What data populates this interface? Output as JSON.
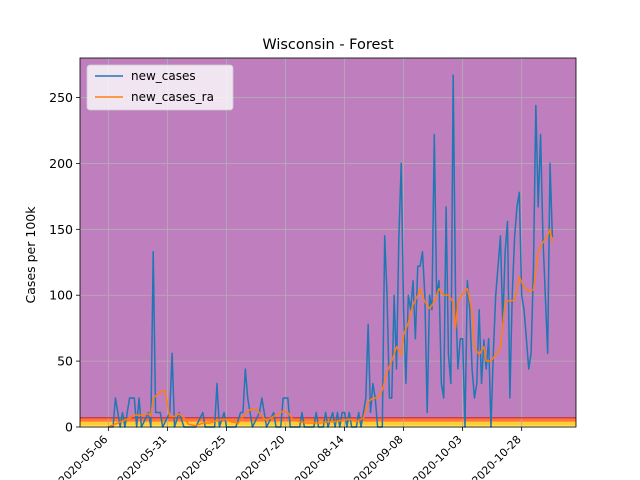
{
  "chart_data": {
    "type": "line",
    "title": "Wisconsin - Forest",
    "xlabel": "",
    "ylabel": "Cases per 100k",
    "x_tick_labels": [
      "2020-05-06",
      "2020-05-31",
      "2020-06-25",
      "2020-07-20",
      "2020-08-14",
      "2020-09-08",
      "2020-10-03",
      "2020-10-28"
    ],
    "x_tick_values": [
      "2020-05-06",
      "2020-05-31",
      "2020-06-25",
      "2020-07-20",
      "2020-08-14",
      "2020-09-08",
      "2020-10-03",
      "2020-10-28"
    ],
    "xlim": [
      "2020-04-24",
      "2020-11-20"
    ],
    "y_ticks": [
      0,
      50,
      100,
      150,
      200,
      250
    ],
    "ylim": [
      0,
      280
    ],
    "grid": true,
    "legend_position": "top-left",
    "background_bands": [
      {
        "from": 0,
        "to": 1,
        "color": "#ffff66"
      },
      {
        "from": 1,
        "to": 4,
        "color": "#ffcc33"
      },
      {
        "from": 4,
        "to": 7,
        "color": "#ff7733"
      },
      {
        "from": 7,
        "to": 280,
        "color": "#bf7fbf"
      }
    ],
    "reference_line": {
      "value": 7,
      "color": "#cc3344"
    },
    "series": [
      {
        "name": "new_cases",
        "color": "#1f77b4",
        "points": [
          [
            "2020-05-06",
            0
          ],
          [
            "2020-05-08",
            0
          ],
          [
            "2020-05-09",
            22
          ],
          [
            "2020-05-11",
            0
          ],
          [
            "2020-05-12",
            11
          ],
          [
            "2020-05-13",
            0
          ],
          [
            "2020-05-15",
            22
          ],
          [
            "2020-05-17",
            22
          ],
          [
            "2020-05-18",
            0
          ],
          [
            "2020-05-19",
            22
          ],
          [
            "2020-05-20",
            0
          ],
          [
            "2020-05-23",
            11
          ],
          [
            "2020-05-24",
            0
          ],
          [
            "2020-05-25",
            133
          ],
          [
            "2020-05-26",
            11
          ],
          [
            "2020-05-28",
            11
          ],
          [
            "2020-05-29",
            0
          ],
          [
            "2020-06-01",
            11
          ],
          [
            "2020-06-02",
            56
          ],
          [
            "2020-06-03",
            0
          ],
          [
            "2020-06-05",
            11
          ],
          [
            "2020-06-07",
            0
          ],
          [
            "2020-06-12",
            0
          ],
          [
            "2020-06-15",
            11
          ],
          [
            "2020-06-16",
            0
          ],
          [
            "2020-06-20",
            0
          ],
          [
            "2020-06-21",
            33
          ],
          [
            "2020-06-22",
            0
          ],
          [
            "2020-06-24",
            11
          ],
          [
            "2020-06-25",
            0
          ],
          [
            "2020-06-29",
            0
          ],
          [
            "2020-07-01",
            11
          ],
          [
            "2020-07-02",
            11
          ],
          [
            "2020-07-03",
            44
          ],
          [
            "2020-07-04",
            22
          ],
          [
            "2020-07-06",
            0
          ],
          [
            "2020-07-09",
            11
          ],
          [
            "2020-07-10",
            22
          ],
          [
            "2020-07-11",
            11
          ],
          [
            "2020-07-12",
            0
          ],
          [
            "2020-07-15",
            11
          ],
          [
            "2020-07-16",
            0
          ],
          [
            "2020-07-18",
            0
          ],
          [
            "2020-07-19",
            22
          ],
          [
            "2020-07-21",
            22
          ],
          [
            "2020-07-22",
            0
          ],
          [
            "2020-07-26",
            0
          ],
          [
            "2020-07-27",
            11
          ],
          [
            "2020-07-28",
            0
          ],
          [
            "2020-08-01",
            0
          ],
          [
            "2020-08-02",
            11
          ],
          [
            "2020-08-03",
            0
          ],
          [
            "2020-08-05",
            0
          ],
          [
            "2020-08-06",
            11
          ],
          [
            "2020-08-07",
            0
          ],
          [
            "2020-08-09",
            11
          ],
          [
            "2020-08-10",
            0
          ],
          [
            "2020-08-11",
            11
          ],
          [
            "2020-08-12",
            0
          ],
          [
            "2020-08-13",
            11
          ],
          [
            "2020-08-14",
            11
          ],
          [
            "2020-08-15",
            0
          ],
          [
            "2020-08-16",
            11
          ],
          [
            "2020-08-17",
            0
          ],
          [
            "2020-08-19",
            0
          ],
          [
            "2020-08-20",
            11
          ],
          [
            "2020-08-21",
            0
          ],
          [
            "2020-08-22",
            11
          ],
          [
            "2020-08-23",
            22
          ],
          [
            "2020-08-24",
            78
          ],
          [
            "2020-08-25",
            11
          ],
          [
            "2020-08-26",
            33
          ],
          [
            "2020-08-27",
            22
          ],
          [
            "2020-08-28",
            0
          ],
          [
            "2020-08-29",
            0
          ],
          [
            "2020-08-30",
            0
          ],
          [
            "2020-08-31",
            145
          ],
          [
            "2020-09-01",
            100
          ],
          [
            "2020-09-02",
            22
          ],
          [
            "2020-09-03",
            22
          ],
          [
            "2020-09-04",
            100
          ],
          [
            "2020-09-05",
            44
          ],
          [
            "2020-09-06",
            144
          ],
          [
            "2020-09-07",
            200
          ],
          [
            "2020-09-08",
            89
          ],
          [
            "2020-09-09",
            33
          ],
          [
            "2020-09-10",
            100
          ],
          [
            "2020-09-11",
            89
          ],
          [
            "2020-09-12",
            111
          ],
          [
            "2020-09-13",
            67
          ],
          [
            "2020-09-14",
            122
          ],
          [
            "2020-09-15",
            122
          ],
          [
            "2020-09-16",
            133
          ],
          [
            "2020-09-17",
            100
          ],
          [
            "2020-09-18",
            11
          ],
          [
            "2020-09-19",
            100
          ],
          [
            "2020-09-20",
            89
          ],
          [
            "2020-09-21",
            222
          ],
          [
            "2020-09-22",
            100
          ],
          [
            "2020-09-23",
            111
          ],
          [
            "2020-09-24",
            33
          ],
          [
            "2020-09-25",
            22
          ],
          [
            "2020-09-26",
            167
          ],
          [
            "2020-09-27",
            55
          ],
          [
            "2020-09-28",
            33
          ],
          [
            "2020-09-29",
            267
          ],
          [
            "2020-09-30",
            100
          ],
          [
            "2020-10-01",
            44
          ],
          [
            "2020-10-02",
            67
          ],
          [
            "2020-10-03",
            67
          ],
          [
            "2020-10-04",
            0
          ],
          [
            "2020-10-05",
            111
          ],
          [
            "2020-10-06",
            89
          ],
          [
            "2020-10-07",
            44
          ],
          [
            "2020-10-08",
            22
          ],
          [
            "2020-10-09",
            33
          ],
          [
            "2020-10-10",
            89
          ],
          [
            "2020-10-11",
            33
          ],
          [
            "2020-10-12",
            66
          ],
          [
            "2020-10-13",
            44
          ],
          [
            "2020-10-14",
            67
          ],
          [
            "2020-10-15",
            0
          ],
          [
            "2020-10-16",
            56
          ],
          [
            "2020-10-17",
            100
          ],
          [
            "2020-10-18",
            122
          ],
          [
            "2020-10-19",
            145
          ],
          [
            "2020-10-20",
            78
          ],
          [
            "2020-10-21",
            133
          ],
          [
            "2020-10-22",
            156
          ],
          [
            "2020-10-23",
            22
          ],
          [
            "2020-10-24",
            100
          ],
          [
            "2020-10-25",
            144
          ],
          [
            "2020-10-26",
            167
          ],
          [
            "2020-10-27",
            178
          ],
          [
            "2020-10-28",
            100
          ],
          [
            "2020-10-29",
            89
          ],
          [
            "2020-10-30",
            67
          ],
          [
            "2020-10-31",
            44
          ],
          [
            "2020-11-01",
            56
          ],
          [
            "2020-11-02",
            122
          ],
          [
            "2020-11-03",
            244
          ],
          [
            "2020-11-04",
            167
          ],
          [
            "2020-11-05",
            222
          ],
          [
            "2020-11-06",
            144
          ],
          [
            "2020-11-07",
            100
          ],
          [
            "2020-11-08",
            56
          ],
          [
            "2020-11-09",
            200
          ],
          [
            "2020-11-10",
            144
          ]
        ]
      },
      {
        "name": "new_cases_ra",
        "color": "#ff7f0e",
        "points": [
          [
            "2020-05-06",
            0
          ],
          [
            "2020-05-10",
            3
          ],
          [
            "2020-05-14",
            6
          ],
          [
            "2020-05-17",
            9
          ],
          [
            "2020-05-20",
            9
          ],
          [
            "2020-05-23",
            10
          ],
          [
            "2020-05-24",
            8
          ],
          [
            "2020-05-25",
            22
          ],
          [
            "2020-05-27",
            25
          ],
          [
            "2020-05-29",
            28
          ],
          [
            "2020-05-30",
            27
          ],
          [
            "2020-06-01",
            8
          ],
          [
            "2020-06-03",
            8
          ],
          [
            "2020-06-05",
            10
          ],
          [
            "2020-06-07",
            7
          ],
          [
            "2020-06-09",
            2
          ],
          [
            "2020-06-12",
            1
          ],
          [
            "2020-06-15",
            3
          ],
          [
            "2020-06-18",
            3
          ],
          [
            "2020-06-21",
            5
          ],
          [
            "2020-06-24",
            6
          ],
          [
            "2020-06-27",
            4
          ],
          [
            "2020-06-30",
            3
          ],
          [
            "2020-07-02",
            8
          ],
          [
            "2020-07-04",
            12
          ],
          [
            "2020-07-06",
            14
          ],
          [
            "2020-07-08",
            13
          ],
          [
            "2020-07-10",
            8
          ],
          [
            "2020-07-12",
            5
          ],
          [
            "2020-07-15",
            8
          ],
          [
            "2020-07-17",
            10
          ],
          [
            "2020-07-19",
            12
          ],
          [
            "2020-07-21",
            11
          ],
          [
            "2020-07-23",
            6
          ],
          [
            "2020-07-26",
            4
          ],
          [
            "2020-07-29",
            3
          ],
          [
            "2020-08-01",
            3
          ],
          [
            "2020-08-04",
            3
          ],
          [
            "2020-08-07",
            4
          ],
          [
            "2020-08-10",
            4
          ],
          [
            "2020-08-13",
            5
          ],
          [
            "2020-08-16",
            6
          ],
          [
            "2020-08-19",
            4
          ],
          [
            "2020-08-22",
            7
          ],
          [
            "2020-08-24",
            19
          ],
          [
            "2020-08-26",
            22
          ],
          [
            "2020-08-28",
            22
          ],
          [
            "2020-08-30",
            28
          ],
          [
            "2020-09-01",
            42
          ],
          [
            "2020-09-03",
            50
          ],
          [
            "2020-09-05",
            61
          ],
          [
            "2020-09-07",
            55
          ],
          [
            "2020-09-08",
            70
          ],
          [
            "2020-09-10",
            79
          ],
          [
            "2020-09-12",
            93
          ],
          [
            "2020-09-14",
            100
          ],
          [
            "2020-09-15",
            105
          ],
          [
            "2020-09-17",
            95
          ],
          [
            "2020-09-19",
            90
          ],
          [
            "2020-09-21",
            95
          ],
          [
            "2020-09-23",
            105
          ],
          [
            "2020-09-25",
            100
          ],
          [
            "2020-09-27",
            100
          ],
          [
            "2020-09-29",
            95
          ],
          [
            "2020-09-30",
            75
          ],
          [
            "2020-10-01",
            95
          ],
          [
            "2020-10-03",
            101
          ],
          [
            "2020-10-05",
            105
          ],
          [
            "2020-10-07",
            88
          ],
          [
            "2020-10-08",
            60
          ],
          [
            "2020-10-10",
            55
          ],
          [
            "2020-10-12",
            61
          ],
          [
            "2020-10-13",
            50
          ],
          [
            "2020-10-15",
            50
          ],
          [
            "2020-10-17",
            55
          ],
          [
            "2020-10-19",
            60
          ],
          [
            "2020-10-21",
            95
          ],
          [
            "2020-10-23",
            96
          ],
          [
            "2020-10-25",
            96
          ],
          [
            "2020-10-27",
            114
          ],
          [
            "2020-10-29",
            106
          ],
          [
            "2020-10-31",
            103
          ],
          [
            "2020-11-02",
            104
          ],
          [
            "2020-11-04",
            133
          ],
          [
            "2020-11-06",
            140
          ],
          [
            "2020-11-08",
            145
          ],
          [
            "2020-11-09",
            150
          ],
          [
            "2020-11-10",
            140
          ]
        ]
      }
    ]
  }
}
